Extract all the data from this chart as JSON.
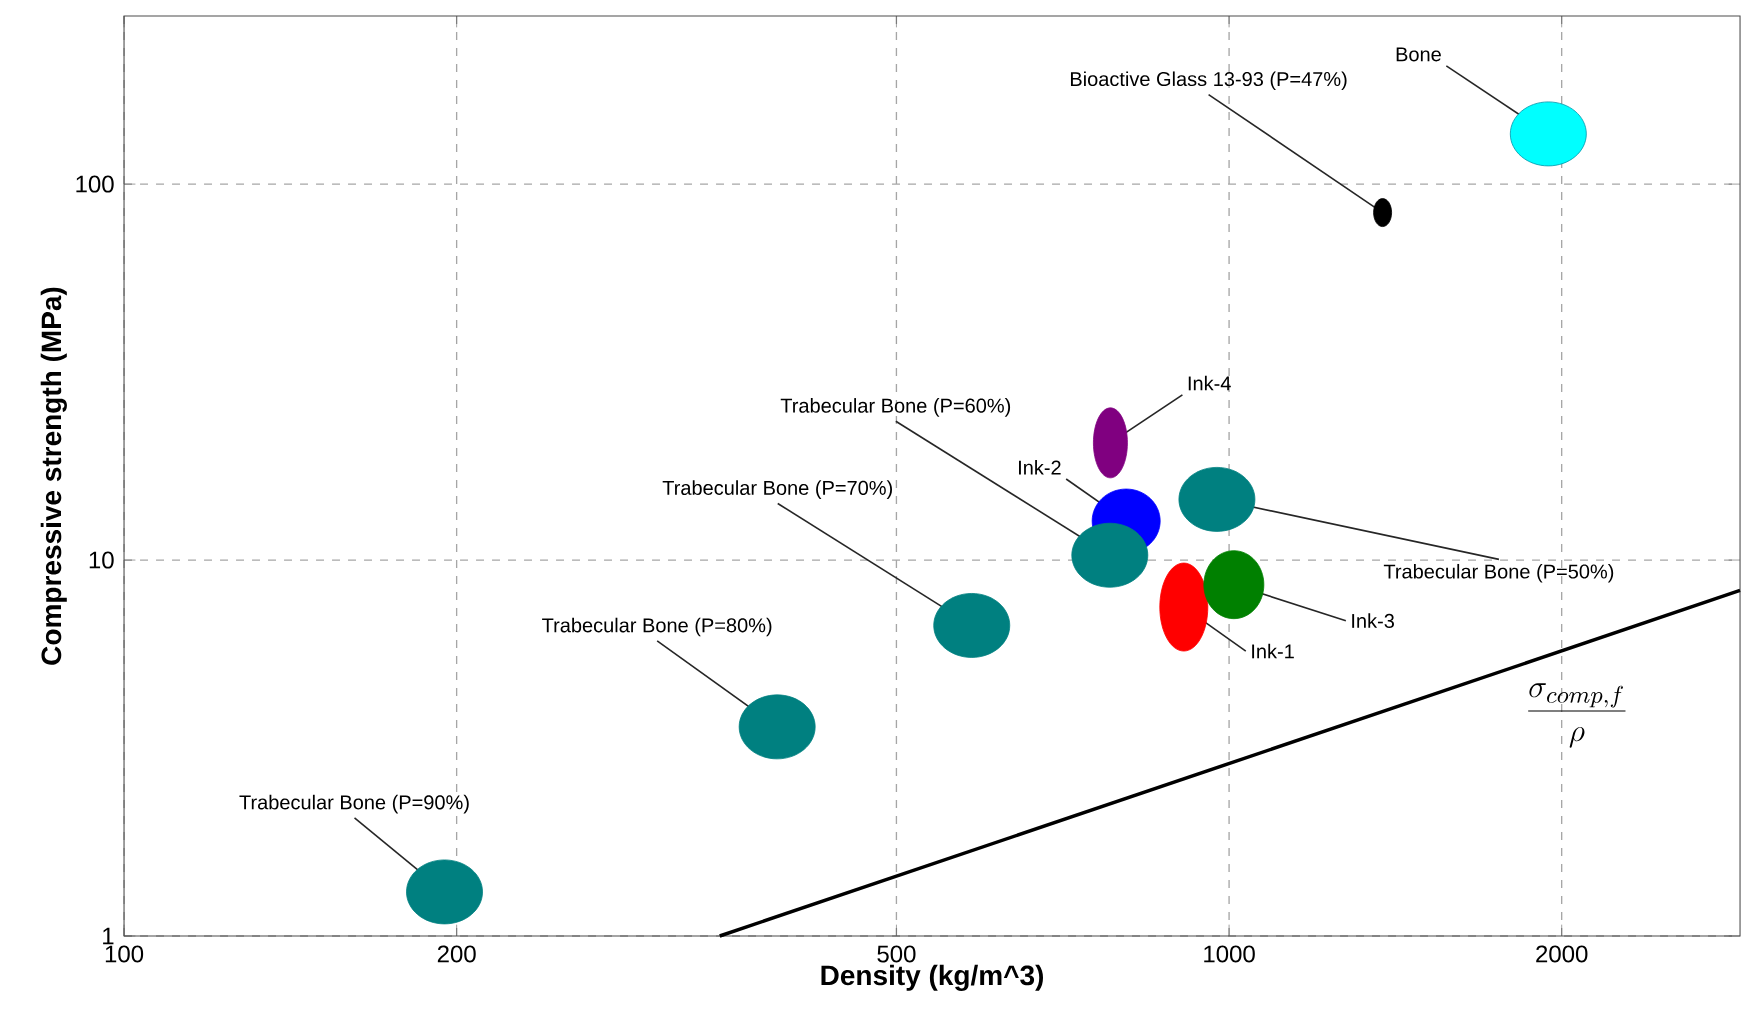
{
  "chart_data": {
    "type": "scatter",
    "xlabel": "Density (kg/m^3)",
    "ylabel": "Compressive strength (MPa)",
    "log": "xy",
    "grid": true,
    "xlim": [
      100,
      2900
    ],
    "ylim": [
      1,
      280
    ],
    "xticks": [
      100,
      200,
      500,
      1000,
      2000
    ],
    "yticks": [
      1,
      10,
      100
    ],
    "annotations": [
      "\\frac{\\sigma_{comp,f}}{\\rho}"
    ],
    "series": [
      {
        "name": "Ink-2",
        "color": "#0000ff",
        "x": [
          807
        ],
        "values": [
          12.7
        ]
      },
      {
        "name": "Ink-1",
        "color": "#ff0000",
        "x": [
          910
        ],
        "values": [
          7.5
        ]
      },
      {
        "name": "Ink-3",
        "color": "#008000",
        "x": [
          1010
        ],
        "values": [
          8.6
        ]
      },
      {
        "name": "Ink-4",
        "color": "#800080",
        "x": [
          781
        ],
        "values": [
          20.5
        ]
      },
      {
        "name": "Trabecular Bone (P=90%)",
        "color": "#008080",
        "x": [
          195
        ],
        "values": [
          1.31
        ]
      },
      {
        "name": "Trabecular Bone (P=80%)",
        "color": "#008080",
        "x": [
          390
        ],
        "values": [
          3.6
        ]
      },
      {
        "name": "Trabecular Bone (P=70%)",
        "color": "#008080",
        "x": [
          585
        ],
        "values": [
          6.7
        ]
      },
      {
        "name": "Trabecular Bone (P=60%)",
        "color": "#008080",
        "x": [
          780
        ],
        "values": [
          10.3
        ]
      },
      {
        "name": "Trabecular Bone (P=50%)",
        "color": "#008080",
        "x": [
          975
        ],
        "values": [
          14.5
        ]
      },
      {
        "name": "Bioactive Glass 13-93 (P=47%)",
        "color": "#000000",
        "x": [
          1377
        ],
        "values": [
          84
        ]
      },
      {
        "name": "Bone",
        "color": "#00ffff",
        "x": [
          1945
        ],
        "values": [
          136
        ]
      },
      {
        "type": "line",
        "color": "#000000",
        "x": [
          346,
          2900
        ],
        "values": [
          1,
          8.3
        ]
      }
    ]
  }
}
